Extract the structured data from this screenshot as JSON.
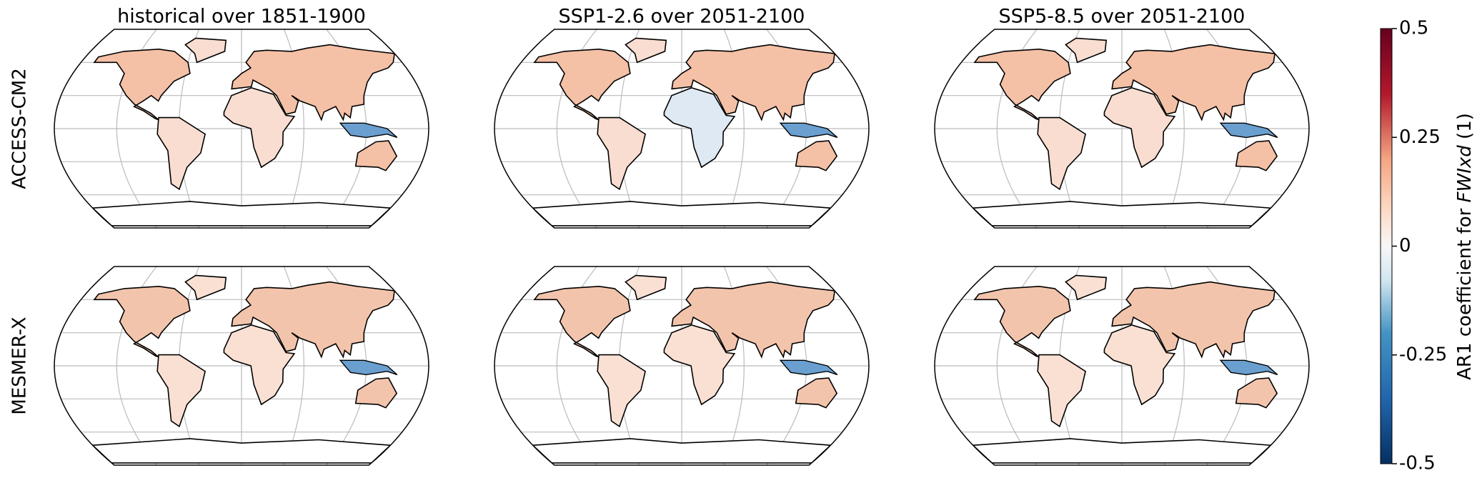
{
  "columns": [
    "historical over 1851-1900",
    "SSP1-2.6 over 2051-2100",
    "SSP5-8.5 over 2051-2100"
  ],
  "rows": [
    "ACCESS-CM2",
    "MESMER-X"
  ],
  "colorbar": {
    "label_start": "AR1 coefficient for ",
    "label_italic": "FWIxd",
    "label_end": " (1)",
    "lim": [
      -0.5,
      0.5
    ],
    "ticks": [
      -0.5,
      -0.25,
      0,
      0.25,
      0.5
    ]
  }
}
